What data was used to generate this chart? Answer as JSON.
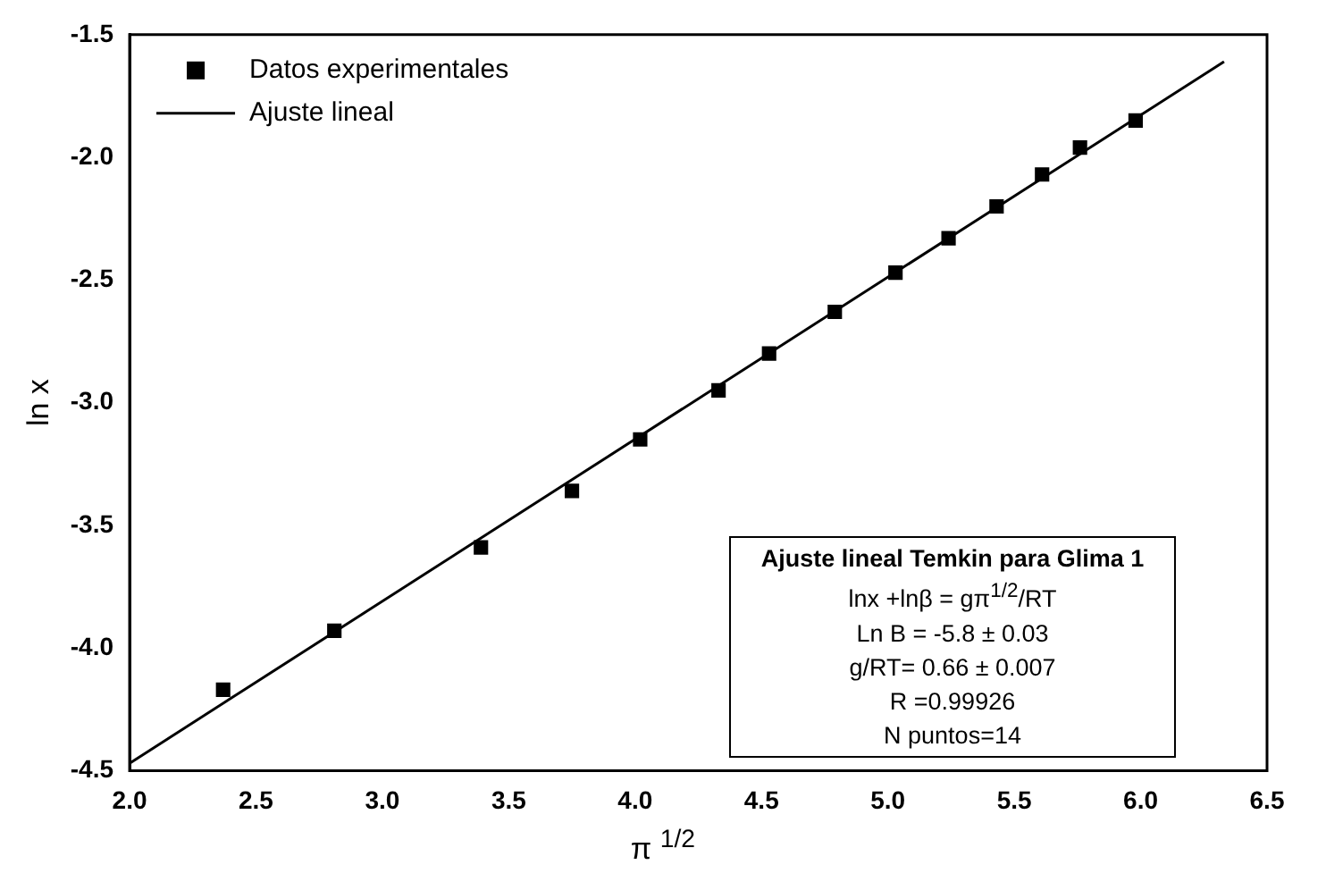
{
  "chart_data": {
    "type": "scatter",
    "xlabel": "π $^{1/2}$",
    "ylabel": "ln x",
    "series": [
      {
        "name": "Datos experimentales",
        "type": "scatter",
        "marker": "square",
        "color": "#000000",
        "x": [
          2.37,
          2.81,
          3.39,
          3.75,
          4.02,
          4.33,
          4.53,
          4.79,
          5.03,
          5.24,
          5.43,
          5.61,
          5.76,
          5.98
        ],
        "values": [
          -4.17,
          -3.93,
          -3.59,
          -3.36,
          -3.15,
          -2.95,
          -2.8,
          -2.63,
          -2.47,
          -2.33,
          -2.2,
          -2.07,
          -1.96,
          -1.85
        ]
      },
      {
        "name": "Ajuste lineal",
        "type": "line",
        "marker": "none",
        "color": "#000000",
        "x": [
          2.0,
          6.33
        ],
        "values": [
          -4.47,
          -1.61
        ]
      }
    ],
    "xlim": [
      2.0,
      6.5
    ],
    "xticks": [
      {
        "value": 2,
        "label": "2.0"
      },
      {
        "value": 2.5,
        "label": "2.5"
      },
      {
        "value": 3,
        "label": "3.0"
      },
      {
        "value": 3.5,
        "label": "3.5"
      },
      {
        "value": 4,
        "label": "4.0"
      },
      {
        "value": 4.5,
        "label": "4.5"
      },
      {
        "value": 5,
        "label": "5.0"
      },
      {
        "value": 5.5,
        "label": "5.5"
      },
      {
        "value": 6,
        "label": "6.0"
      },
      {
        "value": 6.5,
        "label": "6.5"
      }
    ],
    "ylim": [
      -4.5,
      -1.5
    ],
    "yticks": [
      {
        "value": -4.5,
        "label": "-4.5"
      },
      {
        "value": -4,
        "label": "-4.0"
      },
      {
        "value": -3.5,
        "label": "-3.5"
      },
      {
        "value": -3,
        "label": "-3.0"
      },
      {
        "value": -2.5,
        "label": "-2.5"
      },
      {
        "value": -2,
        "label": "-2.0"
      },
      {
        "value": -1.5,
        "label": "-1.5"
      }
    ],
    "grid": false,
    "legend": "top left",
    "annotations": [
      "Ajuste lineal Temkin para Glima 1",
      "lnx +lnβ = gπ$^{1/2}$/RT",
      "Ln B = -5.8 ± 0.03",
      "g/RT= 0.66 ± 0.007",
      "R =0.99926",
      "N puntos=14"
    ]
  }
}
